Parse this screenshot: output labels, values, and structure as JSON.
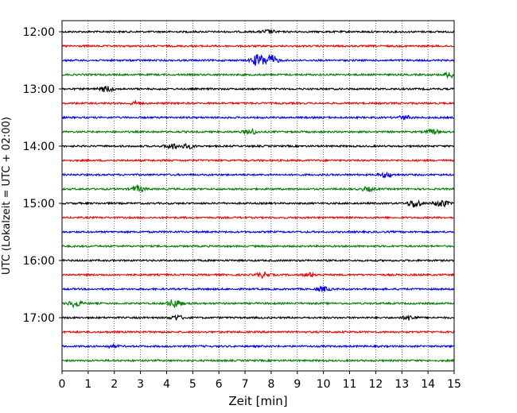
{
  "chart_data": {
    "type": "line",
    "title": "",
    "xlabel": "Zeit  [min]",
    "ylabel": "UTC (Lokalzeit = UTC + 02:00)",
    "xlim": [
      0,
      15
    ],
    "x_ticks": [
      "0",
      "1",
      "2",
      "3",
      "4",
      "5",
      "6",
      "7",
      "8",
      "9",
      "10",
      "11",
      "12",
      "13",
      "14",
      "15"
    ],
    "y_ticks": [
      {
        "label": "12:00",
        "trace_index": 0
      },
      {
        "label": "13:00",
        "trace_index": 4
      },
      {
        "label": "14:00",
        "trace_index": 8
      },
      {
        "label": "15:00",
        "trace_index": 12
      },
      {
        "label": "16:00",
        "trace_index": 16
      },
      {
        "label": "17:00",
        "trace_index": 20
      }
    ],
    "grid": "vertical dotted at every minute",
    "trace_interval_minutes": 15,
    "colors": [
      "#000000",
      "#ff0000",
      "#0000ff",
      "#008000"
    ],
    "traces": [
      {
        "start": "12:00",
        "color": "#000000",
        "events": [
          {
            "x": 7.9,
            "amp": 0.25
          }
        ]
      },
      {
        "start": "12:15",
        "color": "#ff0000",
        "events": []
      },
      {
        "start": "12:30",
        "color": "#0000ff",
        "events": [
          {
            "x": 7.5,
            "amp": 0.8
          },
          {
            "x": 8.0,
            "amp": 0.7
          }
        ]
      },
      {
        "start": "12:45",
        "color": "#008000",
        "events": [
          {
            "x": 14.9,
            "amp": 0.45
          }
        ]
      },
      {
        "start": "13:00",
        "color": "#000000",
        "events": [
          {
            "x": 1.7,
            "amp": 0.4
          }
        ]
      },
      {
        "start": "13:15",
        "color": "#ff0000",
        "events": [
          {
            "x": 2.8,
            "amp": 0.2
          }
        ]
      },
      {
        "start": "13:30",
        "color": "#0000ff",
        "events": [
          {
            "x": 13.1,
            "amp": 0.25
          }
        ]
      },
      {
        "start": "13:45",
        "color": "#008000",
        "events": [
          {
            "x": 7.2,
            "amp": 0.35
          },
          {
            "x": 14.2,
            "amp": 0.3
          }
        ]
      },
      {
        "start": "14:00",
        "color": "#000000",
        "events": [
          {
            "x": 4.2,
            "amp": 0.35
          },
          {
            "x": 4.8,
            "amp": 0.3
          }
        ]
      },
      {
        "start": "14:15",
        "color": "#ff0000",
        "events": []
      },
      {
        "start": "14:30",
        "color": "#0000ff",
        "events": [
          {
            "x": 12.4,
            "amp": 0.3
          }
        ]
      },
      {
        "start": "14:45",
        "color": "#008000",
        "events": [
          {
            "x": 2.9,
            "amp": 0.4
          },
          {
            "x": 11.7,
            "amp": 0.25
          }
        ]
      },
      {
        "start": "15:00",
        "color": "#000000",
        "events": [
          {
            "x": 13.5,
            "amp": 0.55
          },
          {
            "x": 14.5,
            "amp": 0.5
          }
        ]
      },
      {
        "start": "15:15",
        "color": "#ff0000",
        "events": []
      },
      {
        "start": "15:30",
        "color": "#0000ff",
        "events": []
      },
      {
        "start": "15:45",
        "color": "#008000",
        "events": []
      },
      {
        "start": "16:00",
        "color": "#000000",
        "events": []
      },
      {
        "start": "16:15",
        "color": "#ff0000",
        "events": [
          {
            "x": 7.7,
            "amp": 0.35
          },
          {
            "x": 9.5,
            "amp": 0.25
          }
        ]
      },
      {
        "start": "16:30",
        "color": "#0000ff",
        "events": [
          {
            "x": 10.0,
            "amp": 0.3
          }
        ]
      },
      {
        "start": "16:45",
        "color": "#008000",
        "events": [
          {
            "x": 0.5,
            "amp": 0.45
          },
          {
            "x": 4.3,
            "amp": 0.55
          }
        ]
      },
      {
        "start": "17:00",
        "color": "#000000",
        "events": [
          {
            "x": 4.4,
            "amp": 0.3
          },
          {
            "x": 13.3,
            "amp": 0.3
          }
        ]
      },
      {
        "start": "17:15",
        "color": "#ff0000",
        "events": []
      },
      {
        "start": "17:30",
        "color": "#0000ff",
        "events": [
          {
            "x": 1.9,
            "amp": 0.15
          }
        ]
      },
      {
        "start": "17:45",
        "color": "#008000",
        "events": []
      }
    ]
  }
}
